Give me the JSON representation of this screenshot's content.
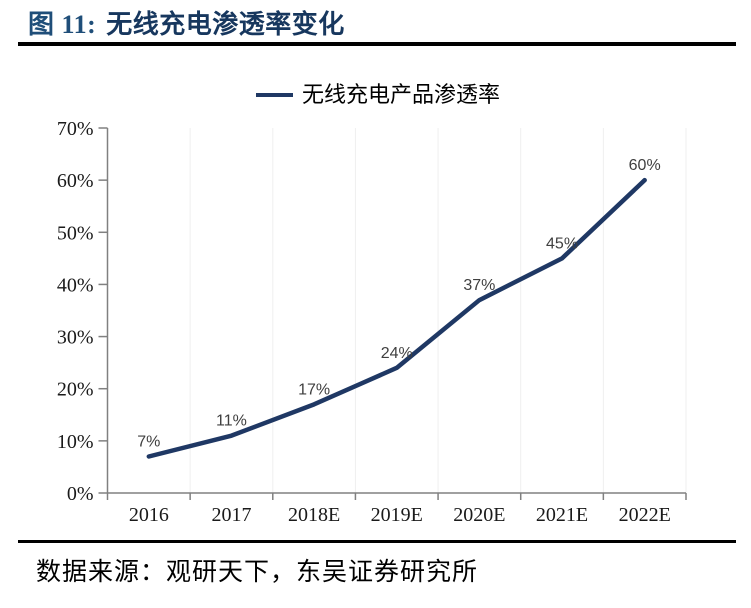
{
  "header": {
    "title_prefix": "图 11:",
    "title_text": "无线充电渗透率变化"
  },
  "footer": {
    "source": "数据来源：观研天下，东吴证券研究所"
  },
  "colors": {
    "title_prefix": "#1f4e79",
    "title_text": "#17375e",
    "rule": "#000000",
    "line": "#1f3864",
    "axis": "#808080",
    "tick_label": "#1a1a1a",
    "data_label": "#3f3f3f",
    "gridline": "#efefef",
    "background": "#ffffff"
  },
  "chart_data": {
    "type": "line",
    "title": "图 11: 无线充电渗透率变化",
    "legend": [
      "无线充电产品渗透率"
    ],
    "legend_position": "top-center",
    "categories": [
      "2016",
      "2017",
      "2018E",
      "2019E",
      "2020E",
      "2021E",
      "2022E"
    ],
    "series": [
      {
        "name": "无线充电产品渗透率",
        "values": [
          7,
          11,
          17,
          24,
          37,
          45,
          60
        ],
        "labels": [
          "7%",
          "11%",
          "17%",
          "24%",
          "37%",
          "45%",
          "60%"
        ]
      }
    ],
    "ylim": [
      0,
      70
    ],
    "y_tick_step": 10,
    "y_tick_labels": [
      "0%",
      "10%",
      "20%",
      "30%",
      "40%",
      "50%",
      "60%",
      "70%"
    ],
    "grid": "faint-vertical",
    "xlabel": "",
    "ylabel": ""
  }
}
